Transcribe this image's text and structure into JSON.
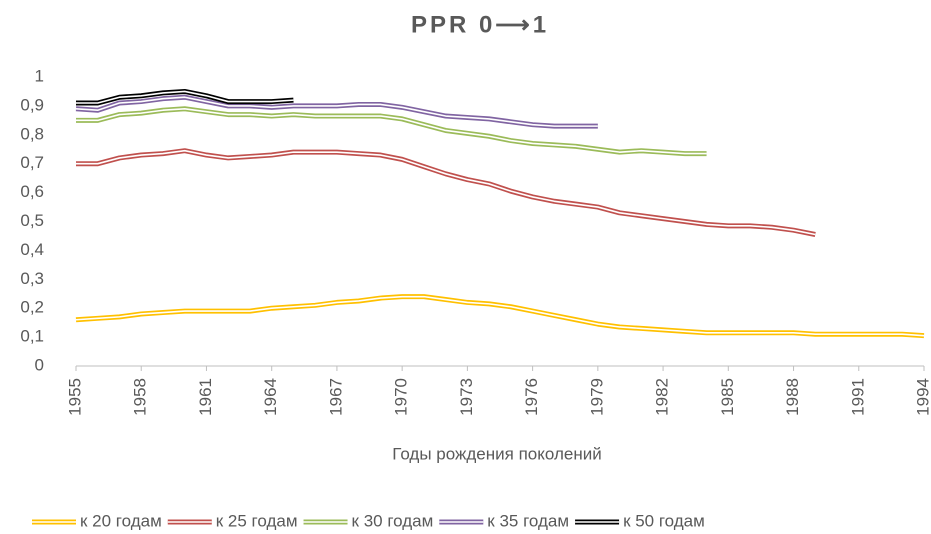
{
  "chart_data": {
    "type": "line",
    "title": "PPR 0⟶1",
    "x_label": "Годы рождения поколений",
    "x": [
      1955,
      1956,
      1957,
      1958,
      1959,
      1960,
      1961,
      1962,
      1963,
      1964,
      1965,
      1966,
      1967,
      1968,
      1969,
      1970,
      1971,
      1972,
      1973,
      1974,
      1975,
      1976,
      1977,
      1978,
      1979,
      1980,
      1981,
      1982,
      1983,
      1984,
      1985,
      1986,
      1987,
      1988,
      1989,
      1990,
      1991,
      1992,
      1993,
      1994
    ],
    "xlim": [
      1955,
      1994
    ],
    "xticks": [
      1955,
      1958,
      1961,
      1964,
      1967,
      1970,
      1973,
      1976,
      1979,
      1982,
      1985,
      1988,
      1991,
      1994
    ],
    "ylim": [
      0,
      1
    ],
    "yticks": [
      0,
      {
        "value": 0.1,
        "label": "0,1"
      },
      {
        "value": 0.2,
        "label": "0,2"
      },
      {
        "value": 0.3,
        "label": "0,3"
      },
      {
        "value": 0.4,
        "label": "0,4"
      },
      {
        "value": 0.5,
        "label": "0,5"
      },
      {
        "value": 0.6,
        "label": "0,6"
      },
      {
        "value": 0.7,
        "label": "0,7"
      },
      {
        "value": 0.8,
        "label": "0,8"
      },
      {
        "value": 0.9,
        "label": "0,9"
      },
      1
    ],
    "grid": false,
    "legend": "bottom",
    "series": [
      {
        "name": "к 20 годам",
        "color": "#ffc000",
        "values": [
          0.16,
          0.165,
          0.17,
          0.18,
          0.185,
          0.19,
          0.19,
          0.19,
          0.19,
          0.2,
          0.205,
          0.21,
          0.22,
          0.225,
          0.235,
          0.24,
          0.24,
          0.23,
          0.22,
          0.215,
          0.205,
          0.19,
          0.175,
          0.16,
          0.145,
          0.135,
          0.13,
          0.125,
          0.12,
          0.115,
          0.115,
          0.115,
          0.115,
          0.115,
          0.11,
          0.11,
          0.11,
          0.11,
          0.11,
          0.105
        ]
      },
      {
        "name": "к 25 годам",
        "color": "#c0504d",
        "values": [
          0.7,
          0.7,
          0.72,
          0.73,
          0.735,
          0.745,
          0.73,
          0.72,
          0.725,
          0.73,
          0.74,
          0.74,
          0.74,
          0.735,
          0.73,
          0.715,
          0.69,
          0.665,
          0.645,
          0.63,
          0.605,
          0.585,
          0.57,
          0.56,
          0.55,
          0.53,
          0.52,
          0.51,
          0.5,
          0.49,
          0.485,
          0.485,
          0.48,
          0.47,
          0.455,
          null,
          null,
          null,
          null,
          null
        ]
      },
      {
        "name": "к 30 годам",
        "color": "#9bbb59",
        "values": [
          0.85,
          0.85,
          0.87,
          0.875,
          0.885,
          0.89,
          0.88,
          0.87,
          0.87,
          0.865,
          0.87,
          0.865,
          0.865,
          0.865,
          0.865,
          0.855,
          0.835,
          0.815,
          0.805,
          0.795,
          0.78,
          0.77,
          0.765,
          0.76,
          0.75,
          0.74,
          0.745,
          0.74,
          0.735,
          0.735,
          null,
          null,
          null,
          null,
          null,
          null,
          null,
          null,
          null,
          null
        ]
      },
      {
        "name": "к 35 годам",
        "color": "#8064a2",
        "values": [
          0.89,
          0.885,
          0.91,
          0.915,
          0.925,
          0.93,
          0.915,
          0.9,
          0.9,
          0.895,
          0.9,
          0.9,
          0.9,
          0.905,
          0.905,
          0.895,
          0.88,
          0.865,
          0.86,
          0.855,
          0.845,
          0.835,
          0.83,
          0.83,
          0.83,
          null,
          null,
          null,
          null,
          null,
          null,
          null,
          null,
          null,
          null,
          null,
          null,
          null,
          null,
          null
        ]
      },
      {
        "name": "к 50 годам",
        "color": "#000000",
        "values": [
          0.91,
          0.91,
          0.93,
          0.935,
          0.945,
          0.95,
          0.935,
          0.915,
          0.915,
          0.915,
          0.92,
          null,
          null,
          null,
          null,
          null,
          null,
          null,
          null,
          null,
          null,
          null,
          null,
          null,
          null,
          null,
          null,
          null,
          null,
          null,
          null,
          null,
          null,
          null,
          null,
          null,
          null,
          null,
          null,
          null
        ]
      }
    ]
  }
}
